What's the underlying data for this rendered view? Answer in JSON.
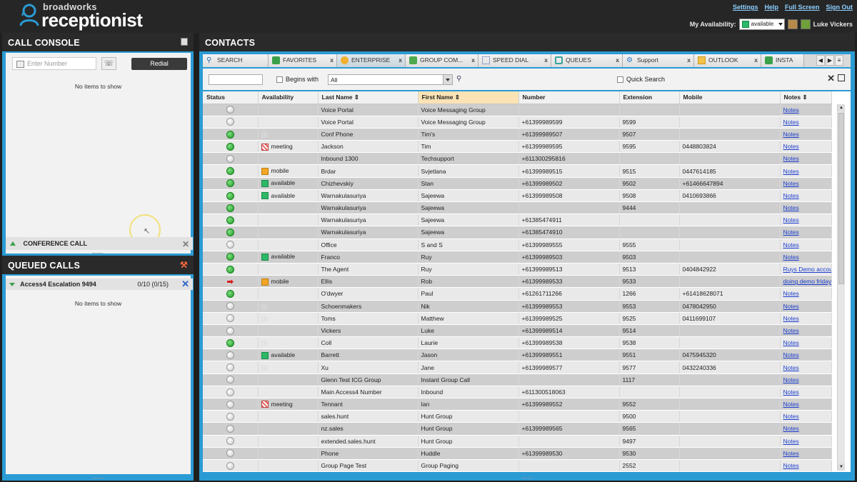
{
  "app": {
    "brand_small": "broadworks",
    "brand_big": "receptionist",
    "links": [
      "Settings",
      "Help",
      "Full Screen",
      "Sign Out"
    ],
    "availability_label": "My Availability:",
    "availability_value": "available",
    "user_name": "Luke Vickers"
  },
  "call_console": {
    "title": "CALL CONSOLE",
    "input_placeholder": "Enter Number",
    "redial_label": "Redial",
    "empty_text": "No items to show",
    "conference_label": "CONFERENCE CALL"
  },
  "queued_calls": {
    "title": "QUEUED CALLS",
    "queue_name": "Access4 Escalation 9494",
    "queue_count": "0/10 (0/15)",
    "empty_text": "No items to show"
  },
  "contacts": {
    "title": "CONTACTS",
    "tabs": [
      {
        "label": "SEARCH",
        "icon": "search-icon",
        "closable": false
      },
      {
        "label": "FAVORITES",
        "icon": "favorites-icon",
        "closable": true
      },
      {
        "label": "ENTERPRISE",
        "icon": "enterprise-icon",
        "closable": true,
        "active": true
      },
      {
        "label": "GROUP COM...",
        "icon": "group-icon",
        "closable": true
      },
      {
        "label": "SPEED DIAL",
        "icon": "speed-dial-icon",
        "closable": true
      },
      {
        "label": "QUEUES",
        "icon": "queues-icon",
        "closable": true
      },
      {
        "label": "Support",
        "icon": "support-icon",
        "closable": true
      },
      {
        "label": "OUTLOOK",
        "icon": "outlook-icon",
        "closable": true
      },
      {
        "label": "INSTA",
        "icon": "instant-message-icon",
        "closable": false
      }
    ],
    "filter": {
      "begins_with": "Begins with",
      "select_value": "All",
      "quick_search": "Quick Search"
    },
    "columns": [
      "Status",
      "Availability",
      "Last Name",
      "First Name",
      "Number",
      "Extension",
      "Mobile",
      "Notes"
    ],
    "rows": [
      {
        "status": "gray",
        "availability": "",
        "avail_icon": "",
        "last": "Voice Portal",
        "first": "Voice Messaging Group",
        "number": "",
        "ext": "",
        "mobile": "",
        "notes": "Notes"
      },
      {
        "status": "gray",
        "availability": "",
        "avail_icon": "",
        "last": "Voice Portal",
        "first": "Voice Messaging Group",
        "number": "+61399989599",
        "ext": "9599",
        "mobile": "",
        "notes": "Notes"
      },
      {
        "status": "green",
        "availability": "",
        "avail_icon": "feed",
        "last": "Conf Phone",
        "first": "Tim's",
        "number": "+61399989507",
        "ext": "9507",
        "mobile": "",
        "notes": "Notes"
      },
      {
        "status": "green",
        "availability": "meeting",
        "avail_icon": "meeting",
        "last": "Jackson",
        "first": "Tim",
        "number": "+61399989595",
        "ext": "9595",
        "mobile": "0448803824",
        "notes": "Notes"
      },
      {
        "status": "gray",
        "availability": "",
        "avail_icon": "",
        "last": "Inbound 1300",
        "first": "Techsupport",
        "number": "+611300295816",
        "ext": "",
        "mobile": "",
        "notes": "Notes"
      },
      {
        "status": "green",
        "availability": "mobile",
        "avail_icon": "mobile",
        "last": "Brdar",
        "first": "Svjetlana",
        "number": "+61399989515",
        "ext": "9515",
        "mobile": "0447614185",
        "notes": "Notes"
      },
      {
        "status": "green",
        "availability": "available",
        "avail_icon": "available",
        "last": "Chizhevskiy",
        "first": "Stan",
        "number": "+61399989502",
        "ext": "9502",
        "mobile": "+61466647894",
        "notes": "Notes"
      },
      {
        "status": "green",
        "availability": "available",
        "avail_icon": "available",
        "last": "Warnakulasuriya",
        "first": "Sajeewa",
        "number": "+61399989508",
        "ext": "9508",
        "mobile": "0410693866",
        "notes": "Notes"
      },
      {
        "status": "green",
        "availability": "",
        "avail_icon": "",
        "last": "Warnakulasuriya",
        "first": "Sajeewa",
        "number": "",
        "ext": "9444",
        "mobile": "",
        "notes": "Notes"
      },
      {
        "status": "green",
        "availability": "",
        "avail_icon": "",
        "last": "Warnakulasuriya",
        "first": "Sajeewa",
        "number": "+61385474911",
        "ext": "",
        "mobile": "",
        "notes": "Notes"
      },
      {
        "status": "green",
        "availability": "",
        "avail_icon": "",
        "last": "Warnakulasuriya",
        "first": "Sajeewa",
        "number": "+61385474910",
        "ext": "",
        "mobile": "",
        "notes": "Notes"
      },
      {
        "status": "gray",
        "availability": "",
        "avail_icon": "",
        "last": "Office",
        "first": "S and S",
        "number": "+61399989555",
        "ext": "9555",
        "mobile": "",
        "notes": "Notes"
      },
      {
        "status": "green",
        "availability": "available",
        "avail_icon": "available",
        "last": "Franco",
        "first": "Ruy",
        "number": "+61399989503",
        "ext": "9503",
        "mobile": "",
        "notes": "Notes"
      },
      {
        "status": "green",
        "availability": "",
        "avail_icon": "",
        "last": "The Agent",
        "first": "Ruy",
        "number": "+61399989513",
        "ext": "9513",
        "mobile": "0404842922",
        "notes": "Ruys Demo accou"
      },
      {
        "status": "red-arrow",
        "availability": "mobile",
        "avail_icon": "mobile",
        "last": "Ellis",
        "first": "Rob",
        "number": "+61399989533",
        "ext": "9533",
        "mobile": "",
        "notes": "doing demo friday"
      },
      {
        "status": "green",
        "availability": "",
        "avail_icon": "",
        "last": "O'dwyer",
        "first": "Paul",
        "number": "+61261711266",
        "ext": "1266",
        "mobile": "+61418628071",
        "notes": "Notes"
      },
      {
        "status": "gray",
        "availability": "",
        "avail_icon": "feed",
        "last": "Schoenmakers",
        "first": "Nik",
        "number": "+61399989553",
        "ext": "9553",
        "mobile": "0478042950",
        "notes": "Notes"
      },
      {
        "status": "gray",
        "availability": "",
        "avail_icon": "feed",
        "last": "Toms",
        "first": "Matthew",
        "number": "+61399989525",
        "ext": "9525",
        "mobile": "0411699107",
        "notes": "Notes"
      },
      {
        "status": "gray",
        "availability": "",
        "avail_icon": "",
        "last": "Vickers",
        "first": "Luke",
        "number": "+61399989514",
        "ext": "9514",
        "mobile": "",
        "notes": "Notes"
      },
      {
        "status": "green",
        "availability": "",
        "avail_icon": "feed",
        "last": "Coll",
        "first": "Laurie",
        "number": "+61399989538",
        "ext": "9538",
        "mobile": "",
        "notes": "Notes"
      },
      {
        "status": "gray",
        "availability": "available",
        "avail_icon": "available",
        "last": "Barrett",
        "first": "Jason",
        "number": "+61399989551",
        "ext": "9551",
        "mobile": "0475945320",
        "notes": "Notes"
      },
      {
        "status": "gray",
        "availability": "",
        "avail_icon": "feed",
        "last": "Xu",
        "first": "Jane",
        "number": "+61399989577",
        "ext": "9577",
        "mobile": "0432240336",
        "notes": "Notes"
      },
      {
        "status": "gray",
        "availability": "",
        "avail_icon": "",
        "last": "Glenn Test ICG Group",
        "first": "Instant Group Call",
        "number": "",
        "ext": "1117",
        "mobile": "",
        "notes": "Notes"
      },
      {
        "status": "gray",
        "availability": "",
        "avail_icon": "",
        "last": "Main Access4 Number",
        "first": "Inbound",
        "number": "+611300518063",
        "ext": "",
        "mobile": "",
        "notes": "Notes"
      },
      {
        "status": "gray",
        "availability": "meeting",
        "avail_icon": "meeting",
        "last": "Tennant",
        "first": "Ian",
        "number": "+61399989552",
        "ext": "9552",
        "mobile": "",
        "notes": "Notes"
      },
      {
        "status": "gray",
        "availability": "",
        "avail_icon": "",
        "last": "sales.hunt",
        "first": "Hunt Group",
        "number": "",
        "ext": "9500",
        "mobile": "",
        "notes": "Notes"
      },
      {
        "status": "gray",
        "availability": "",
        "avail_icon": "",
        "last": "nz.sales",
        "first": "Hunt Group",
        "number": "+61399989565",
        "ext": "9565",
        "mobile": "",
        "notes": "Notes"
      },
      {
        "status": "gray",
        "availability": "",
        "avail_icon": "",
        "last": "extended.sales.hunt",
        "first": "Hunt Group",
        "number": "",
        "ext": "9497",
        "mobile": "",
        "notes": "Notes"
      },
      {
        "status": "gray",
        "availability": "",
        "avail_icon": "",
        "last": "Phone",
        "first": "Huddle",
        "number": "+61399989530",
        "ext": "9530",
        "mobile": "",
        "notes": "Notes"
      },
      {
        "status": "gray",
        "availability": "",
        "avail_icon": "",
        "last": "Group Page Test",
        "first": "Group Paging",
        "number": "",
        "ext": "2552",
        "mobile": "",
        "notes": "Notes"
      }
    ]
  }
}
